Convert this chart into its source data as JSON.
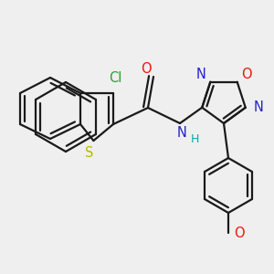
{
  "background_color": "#efefef",
  "figsize": [
    3.0,
    3.0
  ],
  "dpi": 100,
  "lw": 1.6,
  "label_fontsize": 10.5,
  "colors": {
    "black": "#1a1a1a",
    "Cl": "#2ca02c",
    "O": "#e8190a",
    "N": "#2222cc",
    "S": "#b8b800",
    "H": "#00aaaa"
  }
}
